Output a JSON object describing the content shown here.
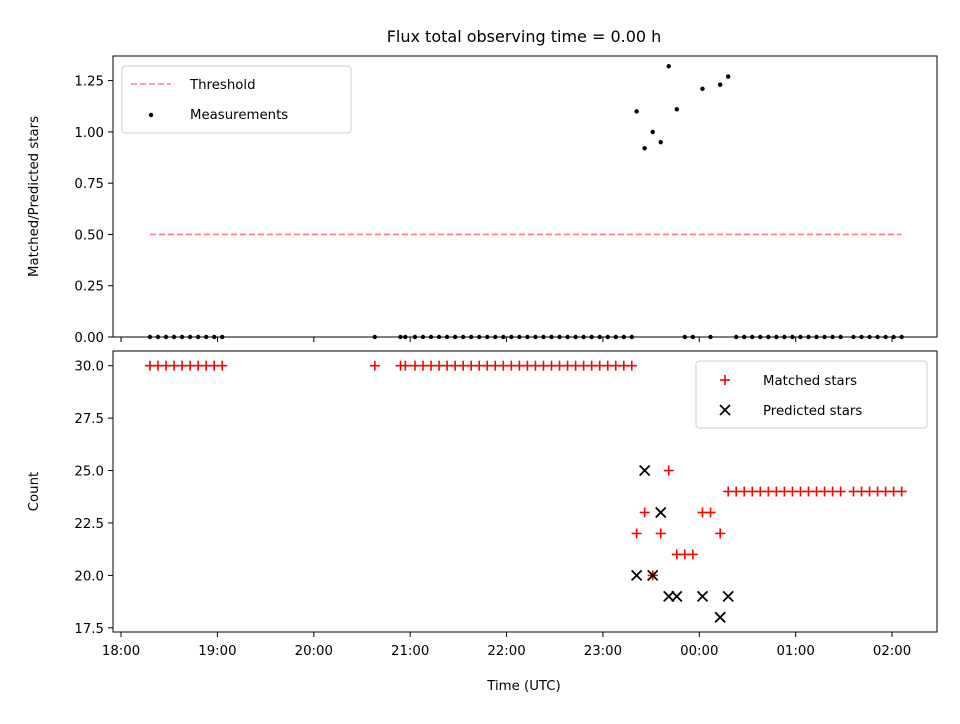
{
  "title": "Flux total observing time = 0.00 h",
  "xlabel": "Time (UTC)",
  "x_ticks": [
    "18:00",
    "19:00",
    "20:00",
    "21:00",
    "22:00",
    "23:00",
    "00:00",
    "01:00",
    "02:00"
  ],
  "colors": {
    "threshold": "#ff7f7f",
    "measurement": "#000000",
    "matched": "#ff0000",
    "predicted": "#000000"
  },
  "chart_data": [
    {
      "type": "scatter",
      "ylabel": "Matched/Predicted stars",
      "y_ticks": [
        "0.00",
        "0.25",
        "0.50",
        "0.75",
        "1.00",
        "1.25"
      ],
      "xlim": [
        "17:55",
        "02:28"
      ],
      "ylim": [
        0,
        1.37
      ],
      "legend_position": "upper-left",
      "threshold": {
        "name": "Threshold",
        "value": 0.5,
        "x_start": "18:18",
        "x_end": "02:06"
      },
      "series": [
        {
          "name": "Measurements",
          "marker": "dot",
          "points": [
            [
              "18:18",
              0
            ],
            [
              "18:23",
              0
            ],
            [
              "18:28",
              0
            ],
            [
              "18:33",
              0
            ],
            [
              "18:38",
              0
            ],
            [
              "18:43",
              0
            ],
            [
              "18:48",
              0
            ],
            [
              "18:53",
              0
            ],
            [
              "18:58",
              0
            ],
            [
              "19:03",
              0
            ],
            [
              "20:38",
              0
            ],
            [
              "20:54",
              0
            ],
            [
              "20:57",
              0
            ],
            [
              "21:03",
              0
            ],
            [
              "21:08",
              0
            ],
            [
              "21:13",
              0
            ],
            [
              "21:18",
              0
            ],
            [
              "21:23",
              0
            ],
            [
              "21:28",
              0
            ],
            [
              "21:33",
              0
            ],
            [
              "21:38",
              0
            ],
            [
              "21:43",
              0
            ],
            [
              "21:48",
              0
            ],
            [
              "21:53",
              0
            ],
            [
              "21:58",
              0
            ],
            [
              "22:03",
              0
            ],
            [
              "22:08",
              0
            ],
            [
              "22:13",
              0
            ],
            [
              "22:18",
              0
            ],
            [
              "22:23",
              0
            ],
            [
              "22:28",
              0
            ],
            [
              "22:33",
              0
            ],
            [
              "22:38",
              0
            ],
            [
              "22:43",
              0
            ],
            [
              "22:48",
              0
            ],
            [
              "22:53",
              0
            ],
            [
              "22:58",
              0
            ],
            [
              "23:03",
              0
            ],
            [
              "23:08",
              0
            ],
            [
              "23:13",
              0
            ],
            [
              "23:18",
              0
            ],
            [
              "23:21",
              1.1
            ],
            [
              "23:26",
              0.92
            ],
            [
              "23:31",
              1.0
            ],
            [
              "23:36",
              0.95
            ],
            [
              "23:41",
              1.32
            ],
            [
              "23:46",
              1.11
            ],
            [
              "23:51",
              0
            ],
            [
              "23:56",
              0
            ],
            [
              "00:02",
              1.21
            ],
            [
              "00:07",
              0
            ],
            [
              "00:13",
              1.23
            ],
            [
              "00:18",
              1.27
            ],
            [
              "00:23",
              0
            ],
            [
              "00:28",
              0
            ],
            [
              "00:33",
              0
            ],
            [
              "00:38",
              0
            ],
            [
              "00:43",
              0
            ],
            [
              "00:48",
              0
            ],
            [
              "00:53",
              0
            ],
            [
              "00:58",
              0
            ],
            [
              "01:03",
              0
            ],
            [
              "01:08",
              0
            ],
            [
              "01:13",
              0
            ],
            [
              "01:18",
              0
            ],
            [
              "01:23",
              0
            ],
            [
              "01:28",
              0
            ],
            [
              "01:36",
              0
            ],
            [
              "01:41",
              0
            ],
            [
              "01:46",
              0
            ],
            [
              "01:51",
              0
            ],
            [
              "01:56",
              0
            ],
            [
              "02:01",
              0
            ],
            [
              "02:06",
              0
            ]
          ]
        }
      ]
    },
    {
      "type": "scatter",
      "ylabel": "Count",
      "y_ticks": [
        "17.5",
        "20.0",
        "22.5",
        "25.0",
        "27.5",
        "30.0"
      ],
      "xlim": [
        "17:55",
        "02:28"
      ],
      "ylim": [
        17.3,
        30.7
      ],
      "legend_position": "upper-right",
      "series": [
        {
          "name": "Matched stars",
          "marker": "plus",
          "points": [
            [
              "18:18",
              30
            ],
            [
              "18:23",
              30
            ],
            [
              "18:28",
              30
            ],
            [
              "18:33",
              30
            ],
            [
              "18:38",
              30
            ],
            [
              "18:43",
              30
            ],
            [
              "18:48",
              30
            ],
            [
              "18:53",
              30
            ],
            [
              "18:58",
              30
            ],
            [
              "19:03",
              30
            ],
            [
              "20:38",
              30
            ],
            [
              "20:54",
              30
            ],
            [
              "20:57",
              30
            ],
            [
              "21:03",
              30
            ],
            [
              "21:08",
              30
            ],
            [
              "21:13",
              30
            ],
            [
              "21:18",
              30
            ],
            [
              "21:23",
              30
            ],
            [
              "21:28",
              30
            ],
            [
              "21:33",
              30
            ],
            [
              "21:38",
              30
            ],
            [
              "21:43",
              30
            ],
            [
              "21:48",
              30
            ],
            [
              "21:53",
              30
            ],
            [
              "21:58",
              30
            ],
            [
              "22:03",
              30
            ],
            [
              "22:08",
              30
            ],
            [
              "22:13",
              30
            ],
            [
              "22:18",
              30
            ],
            [
              "22:23",
              30
            ],
            [
              "22:28",
              30
            ],
            [
              "22:33",
              30
            ],
            [
              "22:38",
              30
            ],
            [
              "22:43",
              30
            ],
            [
              "22:48",
              30
            ],
            [
              "22:53",
              30
            ],
            [
              "22:58",
              30
            ],
            [
              "23:03",
              30
            ],
            [
              "23:08",
              30
            ],
            [
              "23:13",
              30
            ],
            [
              "23:18",
              30
            ],
            [
              "23:21",
              22
            ],
            [
              "23:26",
              23
            ],
            [
              "23:31",
              20
            ],
            [
              "23:36",
              22
            ],
            [
              "23:41",
              25
            ],
            [
              "23:46",
              21
            ],
            [
              "23:51",
              21
            ],
            [
              "23:56",
              21
            ],
            [
              "00:02",
              23
            ],
            [
              "00:07",
              23
            ],
            [
              "00:13",
              22
            ],
            [
              "00:18",
              24
            ],
            [
              "00:23",
              24
            ],
            [
              "00:28",
              24
            ],
            [
              "00:33",
              24
            ],
            [
              "00:38",
              24
            ],
            [
              "00:43",
              24
            ],
            [
              "00:48",
              24
            ],
            [
              "00:53",
              24
            ],
            [
              "00:58",
              24
            ],
            [
              "01:03",
              24
            ],
            [
              "01:08",
              24
            ],
            [
              "01:13",
              24
            ],
            [
              "01:18",
              24
            ],
            [
              "01:23",
              24
            ],
            [
              "01:28",
              24
            ],
            [
              "01:36",
              24
            ],
            [
              "01:41",
              24
            ],
            [
              "01:46",
              24
            ],
            [
              "01:51",
              24
            ],
            [
              "01:56",
              24
            ],
            [
              "02:01",
              24
            ],
            [
              "02:06",
              24
            ]
          ]
        },
        {
          "name": "Predicted stars",
          "marker": "x",
          "points": [
            [
              "23:21",
              20
            ],
            [
              "23:26",
              25
            ],
            [
              "23:31",
              20
            ],
            [
              "23:36",
              23
            ],
            [
              "23:41",
              19
            ],
            [
              "23:46",
              19
            ],
            [
              "00:02",
              19
            ],
            [
              "00:13",
              18
            ],
            [
              "00:18",
              19
            ]
          ]
        }
      ]
    }
  ]
}
